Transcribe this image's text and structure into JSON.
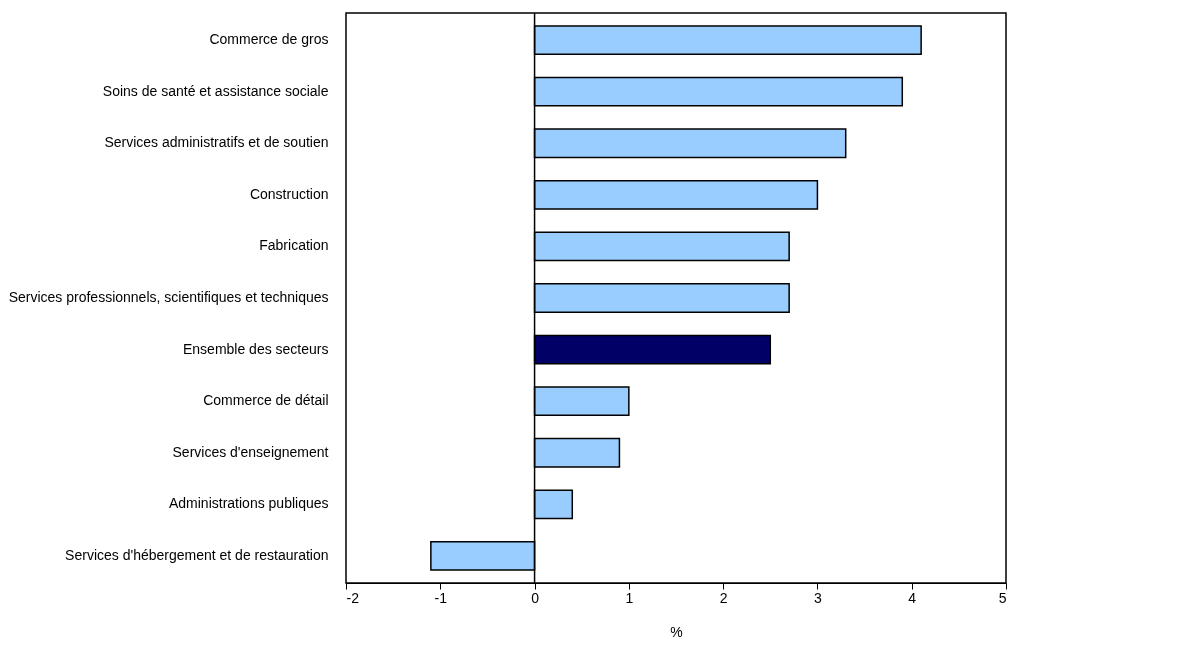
{
  "chart_data": {
    "type": "bar",
    "orientation": "horizontal",
    "xlabel": "%",
    "categories": [
      "Commerce de gros",
      "Soins de santé et assistance sociale",
      "Services administratifs et de soutien",
      "Construction",
      "Fabrication",
      "Services professionnels, scientifiques et techniques",
      "Ensemble des secteurs",
      "Commerce de détail",
      "Services d'enseignement",
      "Administrations publiques",
      "Services d'hébergement et de restauration"
    ],
    "values": [
      4.1,
      3.9,
      3.3,
      3.0,
      2.7,
      2.7,
      2.5,
      1.0,
      0.9,
      0.4,
      -1.1
    ],
    "colors": [
      "#99ccff",
      "#99ccff",
      "#99ccff",
      "#99ccff",
      "#99ccff",
      "#99ccff",
      "#000066",
      "#99ccff",
      "#99ccff",
      "#99ccff",
      "#99ccff"
    ],
    "xlim": [
      -2,
      5
    ],
    "xticks": [
      -2,
      -1,
      0,
      1,
      2,
      3,
      4,
      5
    ],
    "ref_lines": [
      {
        "axis": "x",
        "value": 0,
        "color": "#000000"
      }
    ],
    "grid": false
  }
}
